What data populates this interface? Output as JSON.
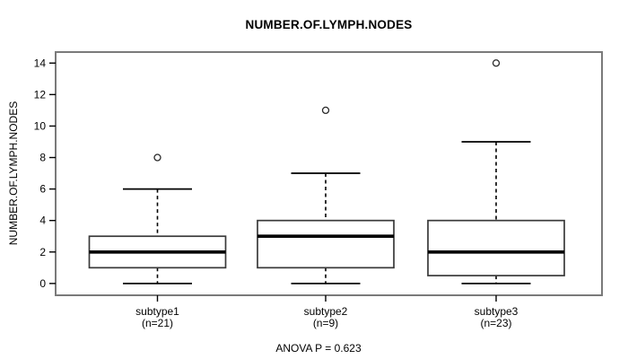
{
  "chart_data": {
    "type": "boxplot",
    "title": "NUMBER.OF.LYMPH.NODES",
    "ylabel": "NUMBER.OF.LYMPH.NODES",
    "footnote": "ANOVA P = 0.623",
    "ylim": [
      -0.75,
      14.7
    ],
    "yticks": [
      0,
      2,
      4,
      6,
      8,
      10,
      12,
      14
    ],
    "grid": false,
    "legend": "none",
    "groups": [
      {
        "label": "subtype1",
        "sublabel": "(n=21)",
        "stats": {
          "whisker_low": 0,
          "q1": 1,
          "median": 2,
          "q3": 3,
          "whisker_high": 6
        },
        "outliers": [
          8
        ]
      },
      {
        "label": "subtype2",
        "sublabel": "(n=9)",
        "stats": {
          "whisker_low": 0,
          "q1": 1,
          "median": 3,
          "q3": 4,
          "whisker_high": 7
        },
        "outliers": [
          11
        ]
      },
      {
        "label": "subtype3",
        "sublabel": "(n=23)",
        "stats": {
          "whisker_low": 0,
          "q1": 0.5,
          "median": 2,
          "q3": 4,
          "whisker_high": 9
        },
        "outliers": [
          14
        ]
      }
    ],
    "colors": {
      "box_fill": "#ffffff",
      "line": "#000000",
      "box_stroke": "#3a3a3a",
      "frame": "#7a7a7a"
    }
  }
}
